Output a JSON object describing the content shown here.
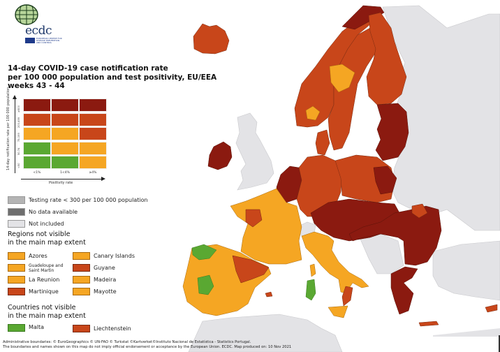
{
  "logo": {
    "text": "ecdc",
    "subtitle": "EUROPEAN CENTRE FOR DISEASE PREVENTION AND CONTROL"
  },
  "title": {
    "line1": "14-day COVID-19 case notification rate",
    "line2": "per 100 000 population and test positivity, EU/EEA",
    "line3": "weeks 43 - 44"
  },
  "colors": {
    "dark_red": "#8b1a10",
    "red_orange": "#c8461a",
    "orange": "#f5a623",
    "green": "#5aa832",
    "grey_testing": "#b4b4b4",
    "grey_nodata": "#6e6e6e",
    "not_included": "#e3e3e6",
    "sea": "#ffffff"
  },
  "legend_matrix": {
    "y_axis_label": "14-day notification rate per 100 000 population",
    "x_axis_label": "Positivity rate",
    "row_labels": [
      "≥500",
      "200-499",
      "75-199",
      "50-74",
      "<50"
    ],
    "col_labels": [
      "<1%",
      "1<4%",
      "≥4%"
    ],
    "cells": [
      [
        "#8b1a10",
        "#8b1a10",
        "#8b1a10"
      ],
      [
        "#c8461a",
        "#c8461a",
        "#c8461a"
      ],
      [
        "#f5a623",
        "#f5a623",
        "#c8461a"
      ],
      [
        "#5aa832",
        "#f5a623",
        "#f5a623"
      ],
      [
        "#5aa832",
        "#5aa832",
        "#f5a623"
      ]
    ]
  },
  "status_legend": [
    {
      "label": "Testing rate < 300 per 100 000 population",
      "color": "#b4b4b4"
    },
    {
      "label": "No data available",
      "color": "#6e6e6e"
    },
    {
      "label": "Not included",
      "color": "#e3e3e6"
    }
  ],
  "regions_section": {
    "title_line1": "Regions not visible",
    "title_line2": "in the main map extent",
    "items": [
      {
        "label": "Azores",
        "color": "#f5a623"
      },
      {
        "label": "Guadeloupe and Saint Martin",
        "color": "#f5a623"
      },
      {
        "label": "La Reunion",
        "color": "#f5a623"
      },
      {
        "label": "Martinique",
        "color": "#c8461a"
      },
      {
        "label": "Canary Islands",
        "color": "#f5a623"
      },
      {
        "label": "Guyane",
        "color": "#c8461a"
      },
      {
        "label": "Madeira",
        "color": "#f5a623"
      },
      {
        "label": "Mayotte",
        "color": "#f5a623"
      }
    ]
  },
  "countries_section": {
    "title_line1": "Countries not visible",
    "title_line2": "in the main map extent",
    "items": [
      {
        "label": "Malta",
        "color": "#5aa832"
      },
      {
        "label": "Liechtenstein",
        "color": "#c8461a"
      }
    ]
  },
  "footer": {
    "line1": "Administrative boundaries: © EuroGeographics © UN-FAO © Turkstat ©Kartverket©Instituto Nacional de Estatística - Statistics Portugal.",
    "line2": "The boundaries and names shown on this map do not imply official endorsement or acceptance by the European Union. ECDC. Map produced on: 10 Nov 2021"
  },
  "map_regions": [
    {
      "name": "iceland",
      "fill": "#c8461a"
    },
    {
      "name": "norway",
      "fill": "#c8461a"
    },
    {
      "name": "norway-north",
      "fill": "#8b1a10"
    },
    {
      "name": "norway-south-inland",
      "fill": "#f5a623"
    },
    {
      "name": "sweden",
      "fill": "#c8461a"
    },
    {
      "name": "sweden-central",
      "fill": "#f5a623"
    },
    {
      "name": "finland",
      "fill": "#c8461a"
    },
    {
      "name": "estonia-latvia-lithuania",
      "fill": "#8b1a10"
    },
    {
      "name": "ireland",
      "fill": "#8b1a10"
    },
    {
      "name": "uk",
      "fill": "#e3e3e6"
    },
    {
      "name": "denmark",
      "fill": "#c8461a"
    },
    {
      "name": "benelux",
      "fill": "#8b1a10"
    },
    {
      "name": "germany",
      "fill": "#c8461a"
    },
    {
      "name": "poland",
      "fill": "#c8461a"
    },
    {
      "name": "poland-east",
      "fill": "#8b1a10"
    },
    {
      "name": "central-europe",
      "fill": "#8b1a10"
    },
    {
      "name": "switzerland",
      "fill": "#e3e3e6"
    },
    {
      "name": "france",
      "fill": "#f5a623"
    },
    {
      "name": "france-west",
      "fill": "#c8461a"
    },
    {
      "name": "spain-portugal",
      "fill": "#f5a623"
    },
    {
      "name": "spain-north",
      "fill": "#5aa832"
    },
    {
      "name": "spain-central",
      "fill": "#5aa832"
    },
    {
      "name": "spain-east",
      "fill": "#c8461a"
    },
    {
      "name": "balearic",
      "fill": "#c8461a"
    },
    {
      "name": "italy",
      "fill": "#f5a623"
    },
    {
      "name": "italy-calabria",
      "fill": "#c8461a"
    },
    {
      "name": "sardinia",
      "fill": "#5aa832"
    },
    {
      "name": "corsica",
      "fill": "#f5a623"
    },
    {
      "name": "sicily",
      "fill": "#f5a623"
    },
    {
      "name": "balkans-eu",
      "fill": "#8b1a10"
    },
    {
      "name": "romania-ne",
      "fill": "#c8461a"
    },
    {
      "name": "greece",
      "fill": "#8b1a10"
    },
    {
      "name": "crete",
      "fill": "#c8461a"
    },
    {
      "name": "cyprus",
      "fill": "#c8461a"
    },
    {
      "name": "non-eu-east",
      "fill": "#e3e3e6"
    },
    {
      "name": "western-balkans",
      "fill": "#e3e3e6"
    },
    {
      "name": "north-africa",
      "fill": "#e3e3e6"
    },
    {
      "name": "turkey",
      "fill": "#e3e3e6"
    }
  ]
}
